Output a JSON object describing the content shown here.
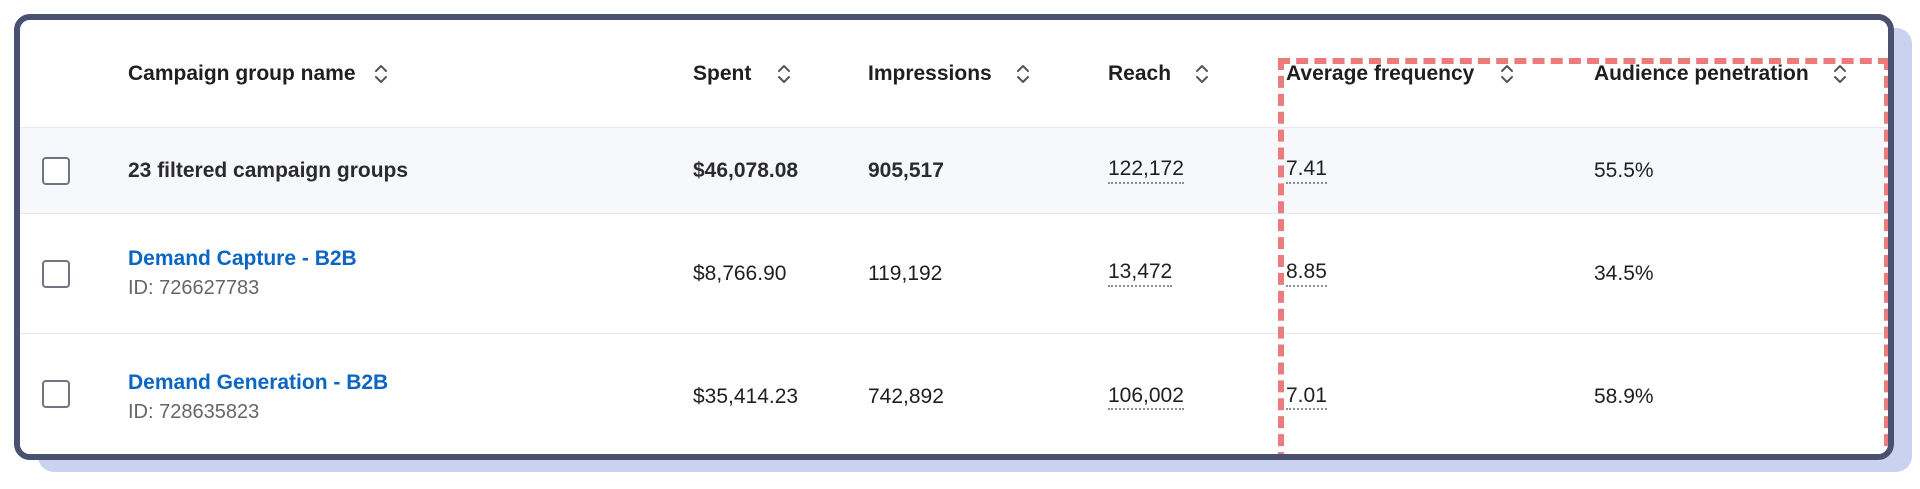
{
  "columns": {
    "name": "Campaign group name",
    "spent": "Spent",
    "impressions": "Impressions",
    "reach": "Reach",
    "avg_frequency": "Average frequency",
    "audience_penetration": "Audience penetration"
  },
  "summary": {
    "label": "23 filtered campaign groups",
    "spent": "$46,078.08",
    "impressions": "905,517",
    "reach": "122,172",
    "avg_frequency": "7.41",
    "audience_penetration": "55.5%"
  },
  "rows": [
    {
      "name": "Demand Capture - B2B",
      "id": "ID: 726627783",
      "spent": "$8,766.90",
      "impressions": "119,192",
      "reach": "13,472",
      "avg_frequency": "8.85",
      "audience_penetration": "34.5%"
    },
    {
      "name": "Demand Generation - B2B",
      "id": "ID: 728635823",
      "spent": "$35,414.23",
      "impressions": "742,892",
      "reach": "106,002",
      "avg_frequency": "7.01",
      "audience_penetration": "58.9%"
    }
  ],
  "colors": {
    "link": "#0a66c2",
    "highlight": "#ec7b7b",
    "frame": "#4a5170"
  },
  "icons": {
    "sort": "sort-updown-icon"
  }
}
